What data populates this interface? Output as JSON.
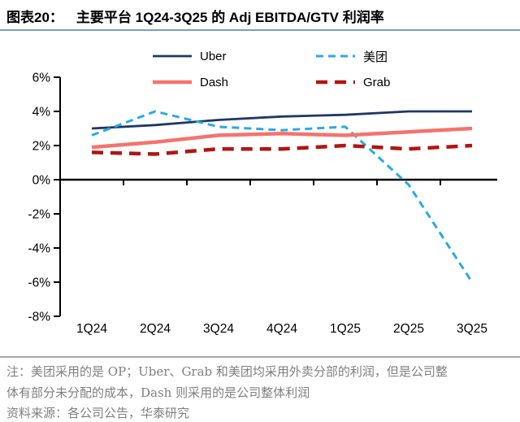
{
  "header": {
    "tag": "图表20：",
    "title": "主要平台 1Q24-3Q25 的 Adj EBITDA/GTV 利润率"
  },
  "chart_data": {
    "type": "line",
    "title": "主要平台 1Q24-3Q25 的 Adj EBITDA/GTV 利润率",
    "categories": [
      "1Q24",
      "2Q24",
      "3Q24",
      "4Q24",
      "1Q25",
      "2Q25",
      "3Q25"
    ],
    "series": [
      {
        "key": "uber",
        "name": "Uber",
        "color": "#1F3864",
        "style": "solid",
        "stroke_width": 2.8,
        "dash": "",
        "values": [
          3.0,
          3.2,
          3.5,
          3.7,
          3.8,
          4.0,
          4.0
        ]
      },
      {
        "key": "meituan",
        "name": "美团",
        "color": "#2BAAE2",
        "style": "dashed",
        "stroke_width": 3.0,
        "dash": "9 6",
        "values": [
          2.6,
          4.0,
          3.1,
          2.9,
          3.1,
          -0.3,
          -6.0
        ]
      },
      {
        "key": "dash",
        "name": "Dash",
        "color": "#F5736D",
        "style": "solid",
        "stroke_width": 4.5,
        "dash": "",
        "values": [
          1.9,
          2.2,
          2.6,
          2.7,
          2.6,
          2.8,
          3.0
        ]
      },
      {
        "key": "grab",
        "name": "Grab",
        "color": "#B01513",
        "style": "dashed",
        "stroke_width": 4.5,
        "dash": "14 9",
        "values": [
          1.6,
          1.5,
          1.8,
          1.8,
          2.0,
          1.8,
          2.0
        ]
      }
    ],
    "ylim": [
      -8,
      6
    ],
    "ytick_step": 2,
    "ytick_suffix": "%",
    "ytick_labels": [
      "6%",
      "4%",
      "2%",
      "0%",
      "-2%",
      "-4%",
      "-6%",
      "-8%"
    ],
    "grid": false,
    "legend_position": "top",
    "axis_color": "#000000"
  },
  "styles": {
    "underline_color": "#7C9DBD",
    "divider_color": "#A8A8A8",
    "note_color": "#7F7F7F"
  },
  "footer": {
    "note_line1": "注：美团采用的是 OP；Uber、Grab 和美团均采用外卖分部的利润，但是公司整",
    "note_line2": "体有部分未分配的成本，Dash 则采用的是公司整体利润",
    "source": "资料来源：各公司公告，华泰研究"
  }
}
